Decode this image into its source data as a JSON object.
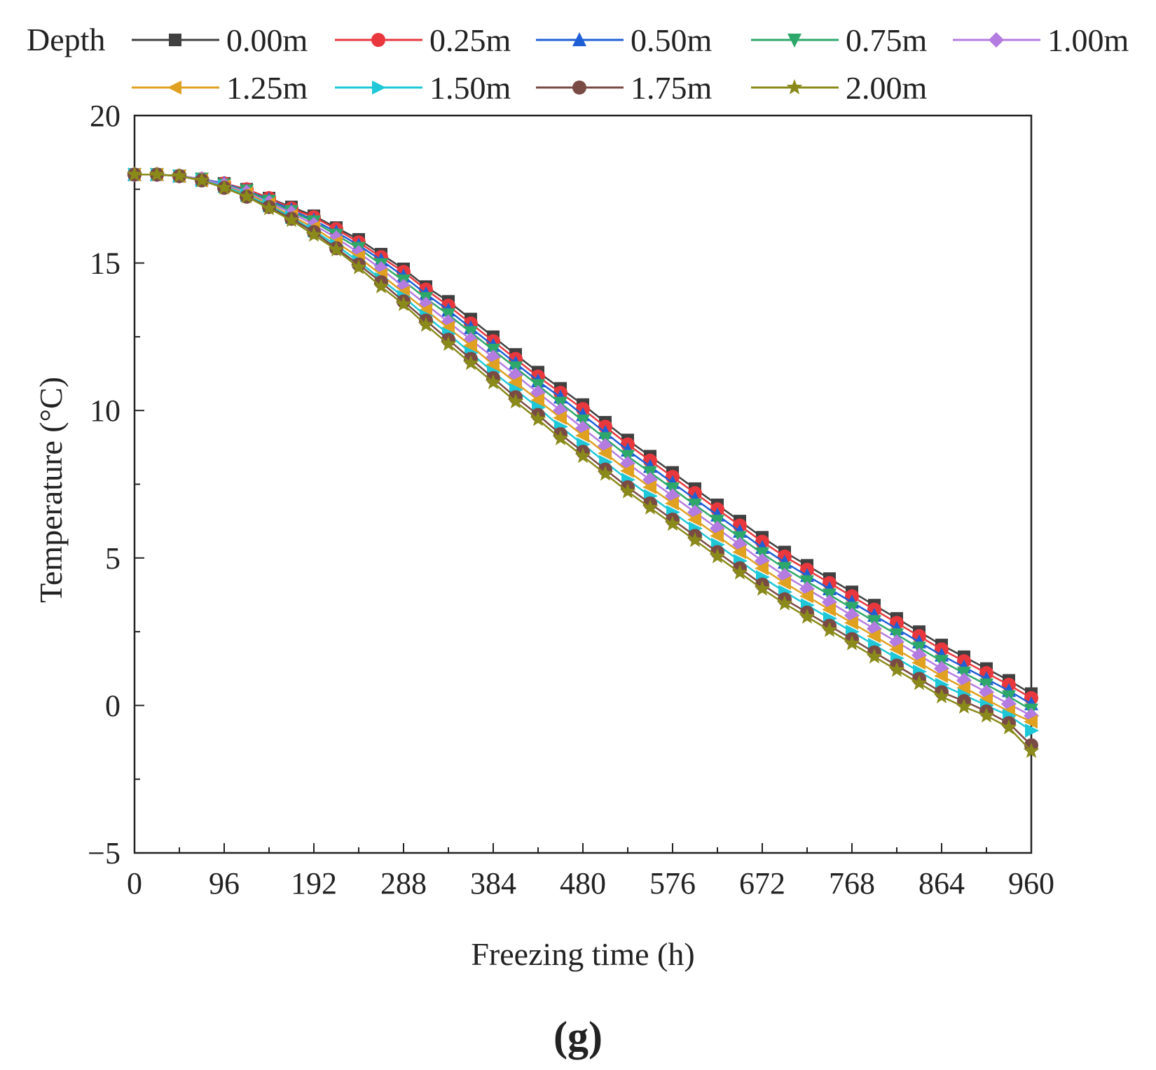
{
  "chart_data": {
    "type": "line",
    "title": "",
    "xlabel": "Freezing time (h)",
    "ylabel": "Temperature (°C)",
    "xlim": [
      0,
      960
    ],
    "ylim": [
      -5,
      20
    ],
    "xticks": [
      0,
      96,
      192,
      288,
      384,
      480,
      576,
      672,
      768,
      864,
      960
    ],
    "yticks": [
      -5,
      0,
      5,
      10,
      15,
      20
    ],
    "xtick_labels": [
      "0",
      "96",
      "192",
      "288",
      "384",
      "480",
      "576",
      "672",
      "768",
      "864",
      "960"
    ],
    "ytick_labels": [
      "−5",
      "0",
      "5",
      "10",
      "15",
      "20"
    ],
    "grid": false,
    "legend_title": "Depth",
    "legend_position": "top",
    "panel_label": "(g)",
    "x": [
      0,
      24,
      48,
      72,
      96,
      120,
      144,
      168,
      192,
      216,
      240,
      264,
      288,
      312,
      336,
      360,
      384,
      408,
      432,
      456,
      480,
      504,
      528,
      552,
      576,
      600,
      624,
      648,
      672,
      696,
      720,
      744,
      768,
      792,
      816,
      840,
      864,
      888,
      912,
      936,
      960
    ],
    "series": [
      {
        "name": "0.00m",
        "color": "#404040",
        "marker": "square",
        "values": [
          18.0,
          18.0,
          17.95,
          17.85,
          17.7,
          17.5,
          17.2,
          16.9,
          16.6,
          16.2,
          15.8,
          15.3,
          14.8,
          14.2,
          13.7,
          13.1,
          12.5,
          11.9,
          11.3,
          10.75,
          10.2,
          9.6,
          9.0,
          8.45,
          7.9,
          7.35,
          6.8,
          6.25,
          5.7,
          5.2,
          4.75,
          4.3,
          3.85,
          3.4,
          2.95,
          2.5,
          2.05,
          1.65,
          1.25,
          0.85,
          0.4
        ]
      },
      {
        "name": "0.25m",
        "color": "#e8383d",
        "marker": "circle",
        "values": [
          18.0,
          18.0,
          17.95,
          17.85,
          17.7,
          17.5,
          17.2,
          16.85,
          16.55,
          16.15,
          15.7,
          15.2,
          14.7,
          14.1,
          13.55,
          12.95,
          12.35,
          11.75,
          11.15,
          10.6,
          10.05,
          9.45,
          8.85,
          8.3,
          7.75,
          7.2,
          6.65,
          6.1,
          5.55,
          5.05,
          4.6,
          4.15,
          3.7,
          3.25,
          2.8,
          2.35,
          1.9,
          1.5,
          1.1,
          0.7,
          0.25
        ]
      },
      {
        "name": "0.50m",
        "color": "#1f5fd6",
        "marker": "triangle-up",
        "values": [
          18.0,
          18.0,
          17.95,
          17.85,
          17.7,
          17.45,
          17.15,
          16.8,
          16.45,
          16.05,
          15.6,
          15.1,
          14.55,
          13.95,
          13.4,
          12.8,
          12.2,
          11.6,
          11.0,
          10.45,
          9.85,
          9.25,
          8.65,
          8.1,
          7.55,
          7.0,
          6.45,
          5.9,
          5.35,
          4.85,
          4.4,
          3.95,
          3.5,
          3.05,
          2.6,
          2.15,
          1.7,
          1.3,
          0.9,
          0.5,
          0.05
        ]
      },
      {
        "name": "0.75m",
        "color": "#2ea86a",
        "marker": "triangle-down",
        "values": [
          18.0,
          18.0,
          17.95,
          17.85,
          17.65,
          17.45,
          17.1,
          16.75,
          16.4,
          15.95,
          15.5,
          14.95,
          14.4,
          13.8,
          13.25,
          12.65,
          12.05,
          11.45,
          10.85,
          10.25,
          9.65,
          9.05,
          8.45,
          7.9,
          7.35,
          6.8,
          6.25,
          5.7,
          5.15,
          4.65,
          4.2,
          3.75,
          3.3,
          2.85,
          2.4,
          1.95,
          1.5,
          1.1,
          0.7,
          0.3,
          -0.15
        ]
      },
      {
        "name": "1.00m",
        "color": "#b47be0",
        "marker": "diamond",
        "values": [
          18.0,
          18.0,
          17.95,
          17.85,
          17.65,
          17.4,
          17.05,
          16.7,
          16.3,
          15.85,
          15.35,
          14.8,
          14.2,
          13.6,
          13.0,
          12.4,
          11.8,
          11.2,
          10.6,
          10.0,
          9.4,
          8.8,
          8.2,
          7.65,
          7.1,
          6.55,
          6.0,
          5.45,
          4.9,
          4.4,
          3.95,
          3.5,
          3.05,
          2.6,
          2.15,
          1.7,
          1.25,
          0.85,
          0.45,
          0.05,
          -0.35
        ]
      },
      {
        "name": "1.25m",
        "color": "#e0a020",
        "marker": "triangle-left",
        "values": [
          18.0,
          18.0,
          17.95,
          17.8,
          17.6,
          17.35,
          17.0,
          16.6,
          16.2,
          15.7,
          15.2,
          14.6,
          14.0,
          13.4,
          12.8,
          12.2,
          11.55,
          10.95,
          10.35,
          9.75,
          9.15,
          8.55,
          7.95,
          7.4,
          6.85,
          6.3,
          5.75,
          5.2,
          4.65,
          4.15,
          3.7,
          3.25,
          2.8,
          2.35,
          1.9,
          1.45,
          1.0,
          0.6,
          0.2,
          -0.2,
          -0.55
        ]
      },
      {
        "name": "1.50m",
        "color": "#1ec8d8",
        "marker": "triangle-right",
        "values": [
          18.0,
          18.0,
          17.95,
          17.8,
          17.6,
          17.3,
          16.95,
          16.55,
          16.1,
          15.6,
          15.05,
          14.45,
          13.85,
          13.2,
          12.6,
          11.95,
          11.3,
          10.7,
          10.1,
          9.45,
          8.85,
          8.25,
          7.65,
          7.1,
          6.55,
          6.0,
          5.45,
          4.9,
          4.35,
          3.85,
          3.4,
          2.95,
          2.5,
          2.05,
          1.6,
          1.15,
          0.7,
          0.35,
          0.0,
          -0.35,
          -0.85
        ]
      },
      {
        "name": "1.75m",
        "color": "#7a4a45",
        "marker": "circle",
        "values": [
          18.0,
          18.0,
          17.95,
          17.8,
          17.55,
          17.25,
          16.9,
          16.5,
          16.05,
          15.5,
          14.95,
          14.35,
          13.7,
          13.05,
          12.4,
          11.75,
          11.1,
          10.45,
          9.85,
          9.2,
          8.6,
          8.0,
          7.4,
          6.85,
          6.3,
          5.75,
          5.2,
          4.65,
          4.1,
          3.6,
          3.15,
          2.7,
          2.25,
          1.8,
          1.35,
          0.9,
          0.45,
          0.15,
          -0.2,
          -0.6,
          -1.35
        ]
      },
      {
        "name": "2.00m",
        "color": "#8a8a1a",
        "marker": "star",
        "values": [
          18.0,
          18.0,
          17.95,
          17.8,
          17.55,
          17.25,
          16.85,
          16.45,
          15.95,
          15.45,
          14.85,
          14.2,
          13.6,
          12.9,
          12.25,
          11.6,
          10.95,
          10.3,
          9.7,
          9.05,
          8.45,
          7.85,
          7.25,
          6.7,
          6.15,
          5.6,
          5.05,
          4.5,
          3.95,
          3.45,
          3.0,
          2.55,
          2.1,
          1.65,
          1.2,
          0.75,
          0.3,
          -0.05,
          -0.35,
          -0.75,
          -1.55
        ]
      }
    ]
  }
}
